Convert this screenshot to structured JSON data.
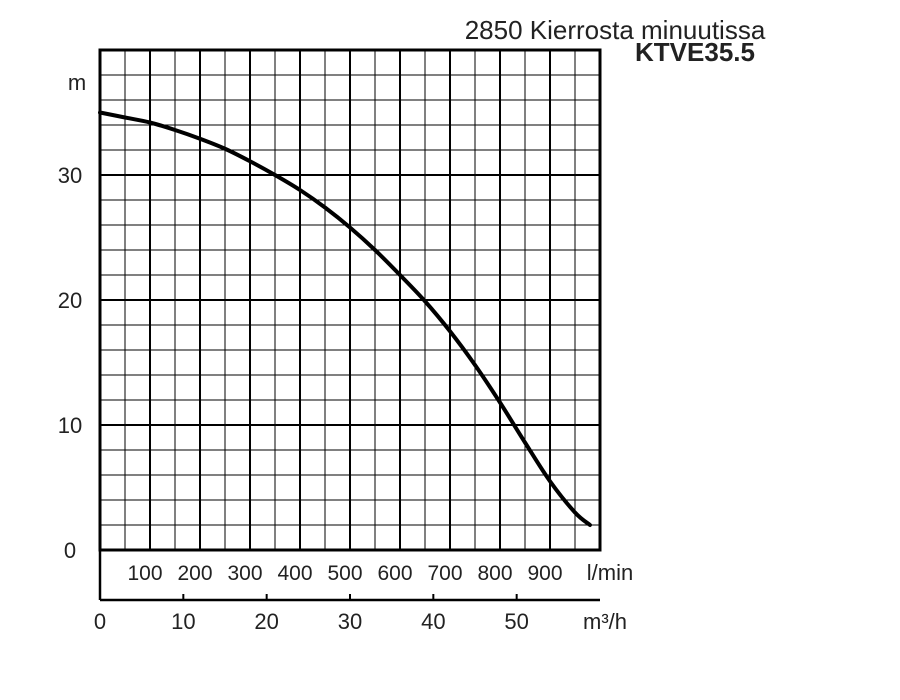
{
  "title": "2850 Kierrosta minuutissa",
  "model": "KTVE35.5",
  "colors": {
    "curve": "#000000",
    "grid": "#000000",
    "text": "#222222",
    "background": "#ffffff"
  },
  "chart_data": {
    "type": "line",
    "title": "2850 Kierrosta minuutissa",
    "subtitle": "KTVE35.5",
    "ylabel": "m",
    "ylim": [
      0,
      40
    ],
    "yticks": [
      "0",
      "10",
      "20",
      "30"
    ],
    "xlabel_lmin": "l/min",
    "xlim_lmin": [
      0,
      1000
    ],
    "xticks_lmin": [
      "100",
      "200",
      "300",
      "400",
      "500",
      "600",
      "700",
      "800",
      "900"
    ],
    "xlabel_m3h": "m³/h",
    "xticks_m3h": [
      "0",
      "10",
      "20",
      "30",
      "40",
      "50"
    ],
    "grid": true,
    "series": [
      {
        "x": [
          0,
          50,
          100,
          150,
          200,
          250,
          300,
          350,
          400,
          450,
          500,
          550,
          600,
          650,
          700,
          750,
          800,
          850,
          900,
          950,
          980
        ],
        "y": [
          35,
          34.6,
          34.2,
          33.6,
          32.9,
          32.1,
          31.1,
          30.0,
          28.8,
          27.4,
          25.8,
          24.0,
          22.0,
          19.9,
          17.5,
          14.8,
          11.8,
          8.6,
          5.5,
          3.0,
          2.0
        ]
      }
    ]
  }
}
